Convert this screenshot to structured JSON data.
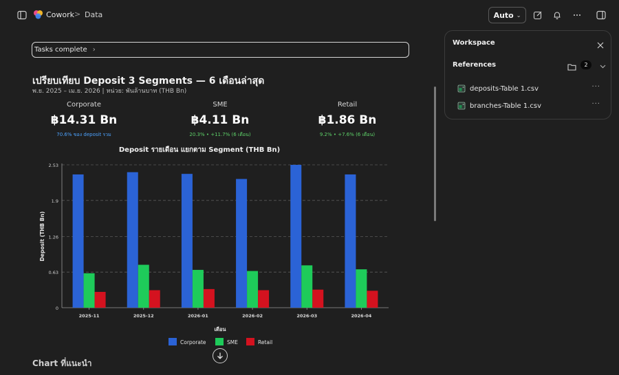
{
  "topbar": {
    "app_name": "Cowork",
    "breadcrumb_sep": ">",
    "breadcrumb_current": "Data",
    "mode_label": "Auto",
    "mode_chevron": "⌄"
  },
  "tasks": {
    "label": "Tasks complete",
    "chevron": "›"
  },
  "page": {
    "title": "เปรียบเทียบ Deposit 3 Segments — 6 เดือนล่าสุด",
    "subtitle": "พ.ย. 2025 – เม.ย. 2026 | หน่วย: พันล้านบาท (THB Bn)"
  },
  "kpis": [
    {
      "label": "Corporate",
      "value": "฿14.31 Bn",
      "note": "70.6% ของ deposit รวม",
      "note_color": "#4da3ff"
    },
    {
      "label": "SME",
      "value": "฿4.11 Bn",
      "note": "20.3% • +11.7% (6 เดือน)",
      "note_color": "#5fd36a"
    },
    {
      "label": "Retail",
      "value": "฿1.86 Bn",
      "note": "9.2% • +7.6% (6 เดือน)",
      "note_color": "#5fd36a"
    }
  ],
  "chart_data": {
    "type": "bar",
    "title": "Deposit รายเดือน แยกตาม Segment (THB Bn)",
    "xlabel": "เดือน",
    "ylabel": "Deposit (THB Bn)",
    "categories": [
      "2025-11",
      "2025-12",
      "2026-01",
      "2026-02",
      "2026-03",
      "2026-04"
    ],
    "y_ticks": [
      "0",
      "0.63",
      "1.26",
      "1.9",
      "2.53"
    ],
    "ylim": [
      0,
      2.53
    ],
    "grid": true,
    "legend_position": "bottom",
    "series": [
      {
        "name": "Corporate",
        "color": "#2b63d6",
        "values": [
          2.36,
          2.4,
          2.37,
          2.28,
          2.53,
          2.36
        ]
      },
      {
        "name": "SME",
        "color": "#1ecb5a",
        "values": [
          0.61,
          0.76,
          0.67,
          0.65,
          0.75,
          0.68
        ]
      },
      {
        "name": "Retail",
        "color": "#d4121f",
        "values": [
          0.28,
          0.31,
          0.33,
          0.31,
          0.32,
          0.3
        ]
      }
    ]
  },
  "bottom": {
    "chart_suggest": "Chart ที่แนะนำ"
  },
  "panel": {
    "title": "Workspace",
    "refs_title": "References",
    "refs_count": "2",
    "files": [
      {
        "name": "deposits-Table 1.csv"
      },
      {
        "name": "branches-Table 1.csv"
      }
    ],
    "more": "···"
  },
  "icons": {
    "sidebar": "sidebar-toggle-icon",
    "compose": "compose-icon",
    "bell": "bell-icon",
    "more": "more-icon",
    "panel": "panel-toggle-icon",
    "close": "close-icon",
    "folder": "folder-icon",
    "file": "spreadsheet-file-icon",
    "down": "arrow-down-icon"
  }
}
